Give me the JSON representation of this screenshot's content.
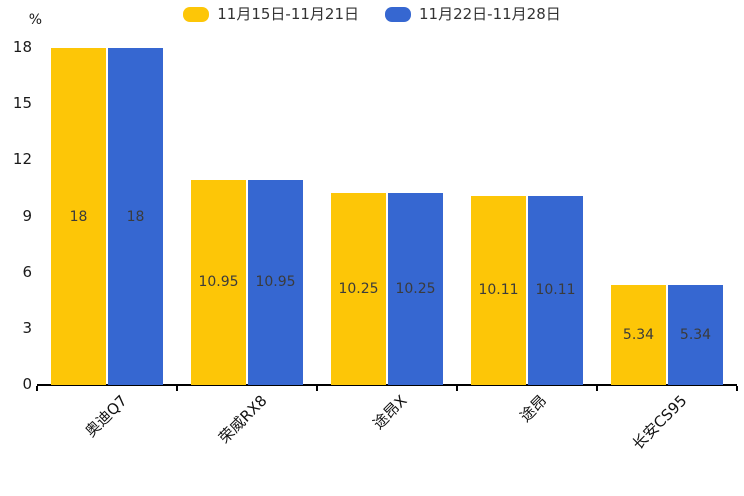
{
  "chart_data": {
    "type": "bar",
    "title": "",
    "categories": [
      "奥迪Q7",
      "荣威RX8",
      "途昂X",
      "途昂",
      "长安CS95"
    ],
    "series": [
      {
        "name": "11月15日-11月21日",
        "color": "#FDC607",
        "values": [
          18,
          10.95,
          10.25,
          10.11,
          5.34
        ]
      },
      {
        "name": "11月22日-11月28日",
        "color": "#3667D1",
        "values": [
          18,
          10.95,
          10.25,
          10.11,
          5.34
        ]
      }
    ],
    "data_labels": [
      "18",
      "10.95",
      "10.25",
      "10.11",
      "5.34"
    ],
    "ylabel": "%",
    "yticks": [
      0,
      3,
      6,
      9,
      12,
      15,
      18
    ],
    "ylim": [
      0,
      18
    ],
    "grid": false,
    "legend_position": "top",
    "x_label_rotation_deg": 45
  }
}
